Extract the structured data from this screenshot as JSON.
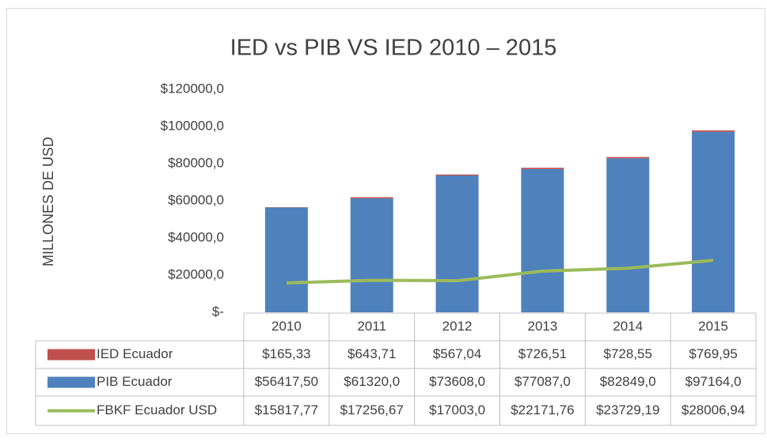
{
  "chart_data": {
    "type": "bar",
    "stacked": true,
    "grid": false,
    "data_table": true,
    "title": "IED vs PIB VS IED 2010 – 2015",
    "ylabel": "MILLONES DE USD",
    "categories": [
      "2010",
      "2011",
      "2012",
      "2013",
      "2014",
      "2015"
    ],
    "ylim": [
      0,
      120000
    ],
    "yticks": [
      {
        "value": 0,
        "label": "$-"
      },
      {
        "value": 20000,
        "label": "$20000,0"
      },
      {
        "value": 40000,
        "label": "$40000,0"
      },
      {
        "value": 60000,
        "label": "$60000,0"
      },
      {
        "value": 80000,
        "label": "$80000,0"
      },
      {
        "value": 100000,
        "label": "$100000,0"
      },
      {
        "value": 120000,
        "label": "$120000,0"
      }
    ],
    "series": [
      {
        "name": "IED Ecuador",
        "color": "#c0504d",
        "kind": "bar",
        "values": [
          165.33,
          643.71,
          567.04,
          726.51,
          728.55,
          769.95
        ],
        "value_labels": [
          "$165,33",
          "$643,71",
          "$567,04",
          "$726,51",
          "$728,55",
          "$769,95"
        ]
      },
      {
        "name": "PIB Ecuador",
        "color": "#4f81bd",
        "kind": "bar",
        "values": [
          56417.5,
          61320.0,
          73608.0,
          77087.0,
          82849.0,
          97164.0
        ],
        "value_labels": [
          "$56417,50",
          "$61320,0",
          "$73608,0",
          "$77087,0",
          "$82849,0",
          "$97164,0"
        ]
      },
      {
        "name": "FBKF Ecuador USD",
        "color": "#9bbb59",
        "kind": "line",
        "values": [
          15817.77,
          17256.67,
          17003.0,
          22171.76,
          23729.19,
          28006.94
        ],
        "value_labels": [
          "$15817,77",
          "$17256,67",
          "$17003,0",
          "$22171,76",
          "$23729,19",
          "$28006,94"
        ]
      }
    ]
  }
}
